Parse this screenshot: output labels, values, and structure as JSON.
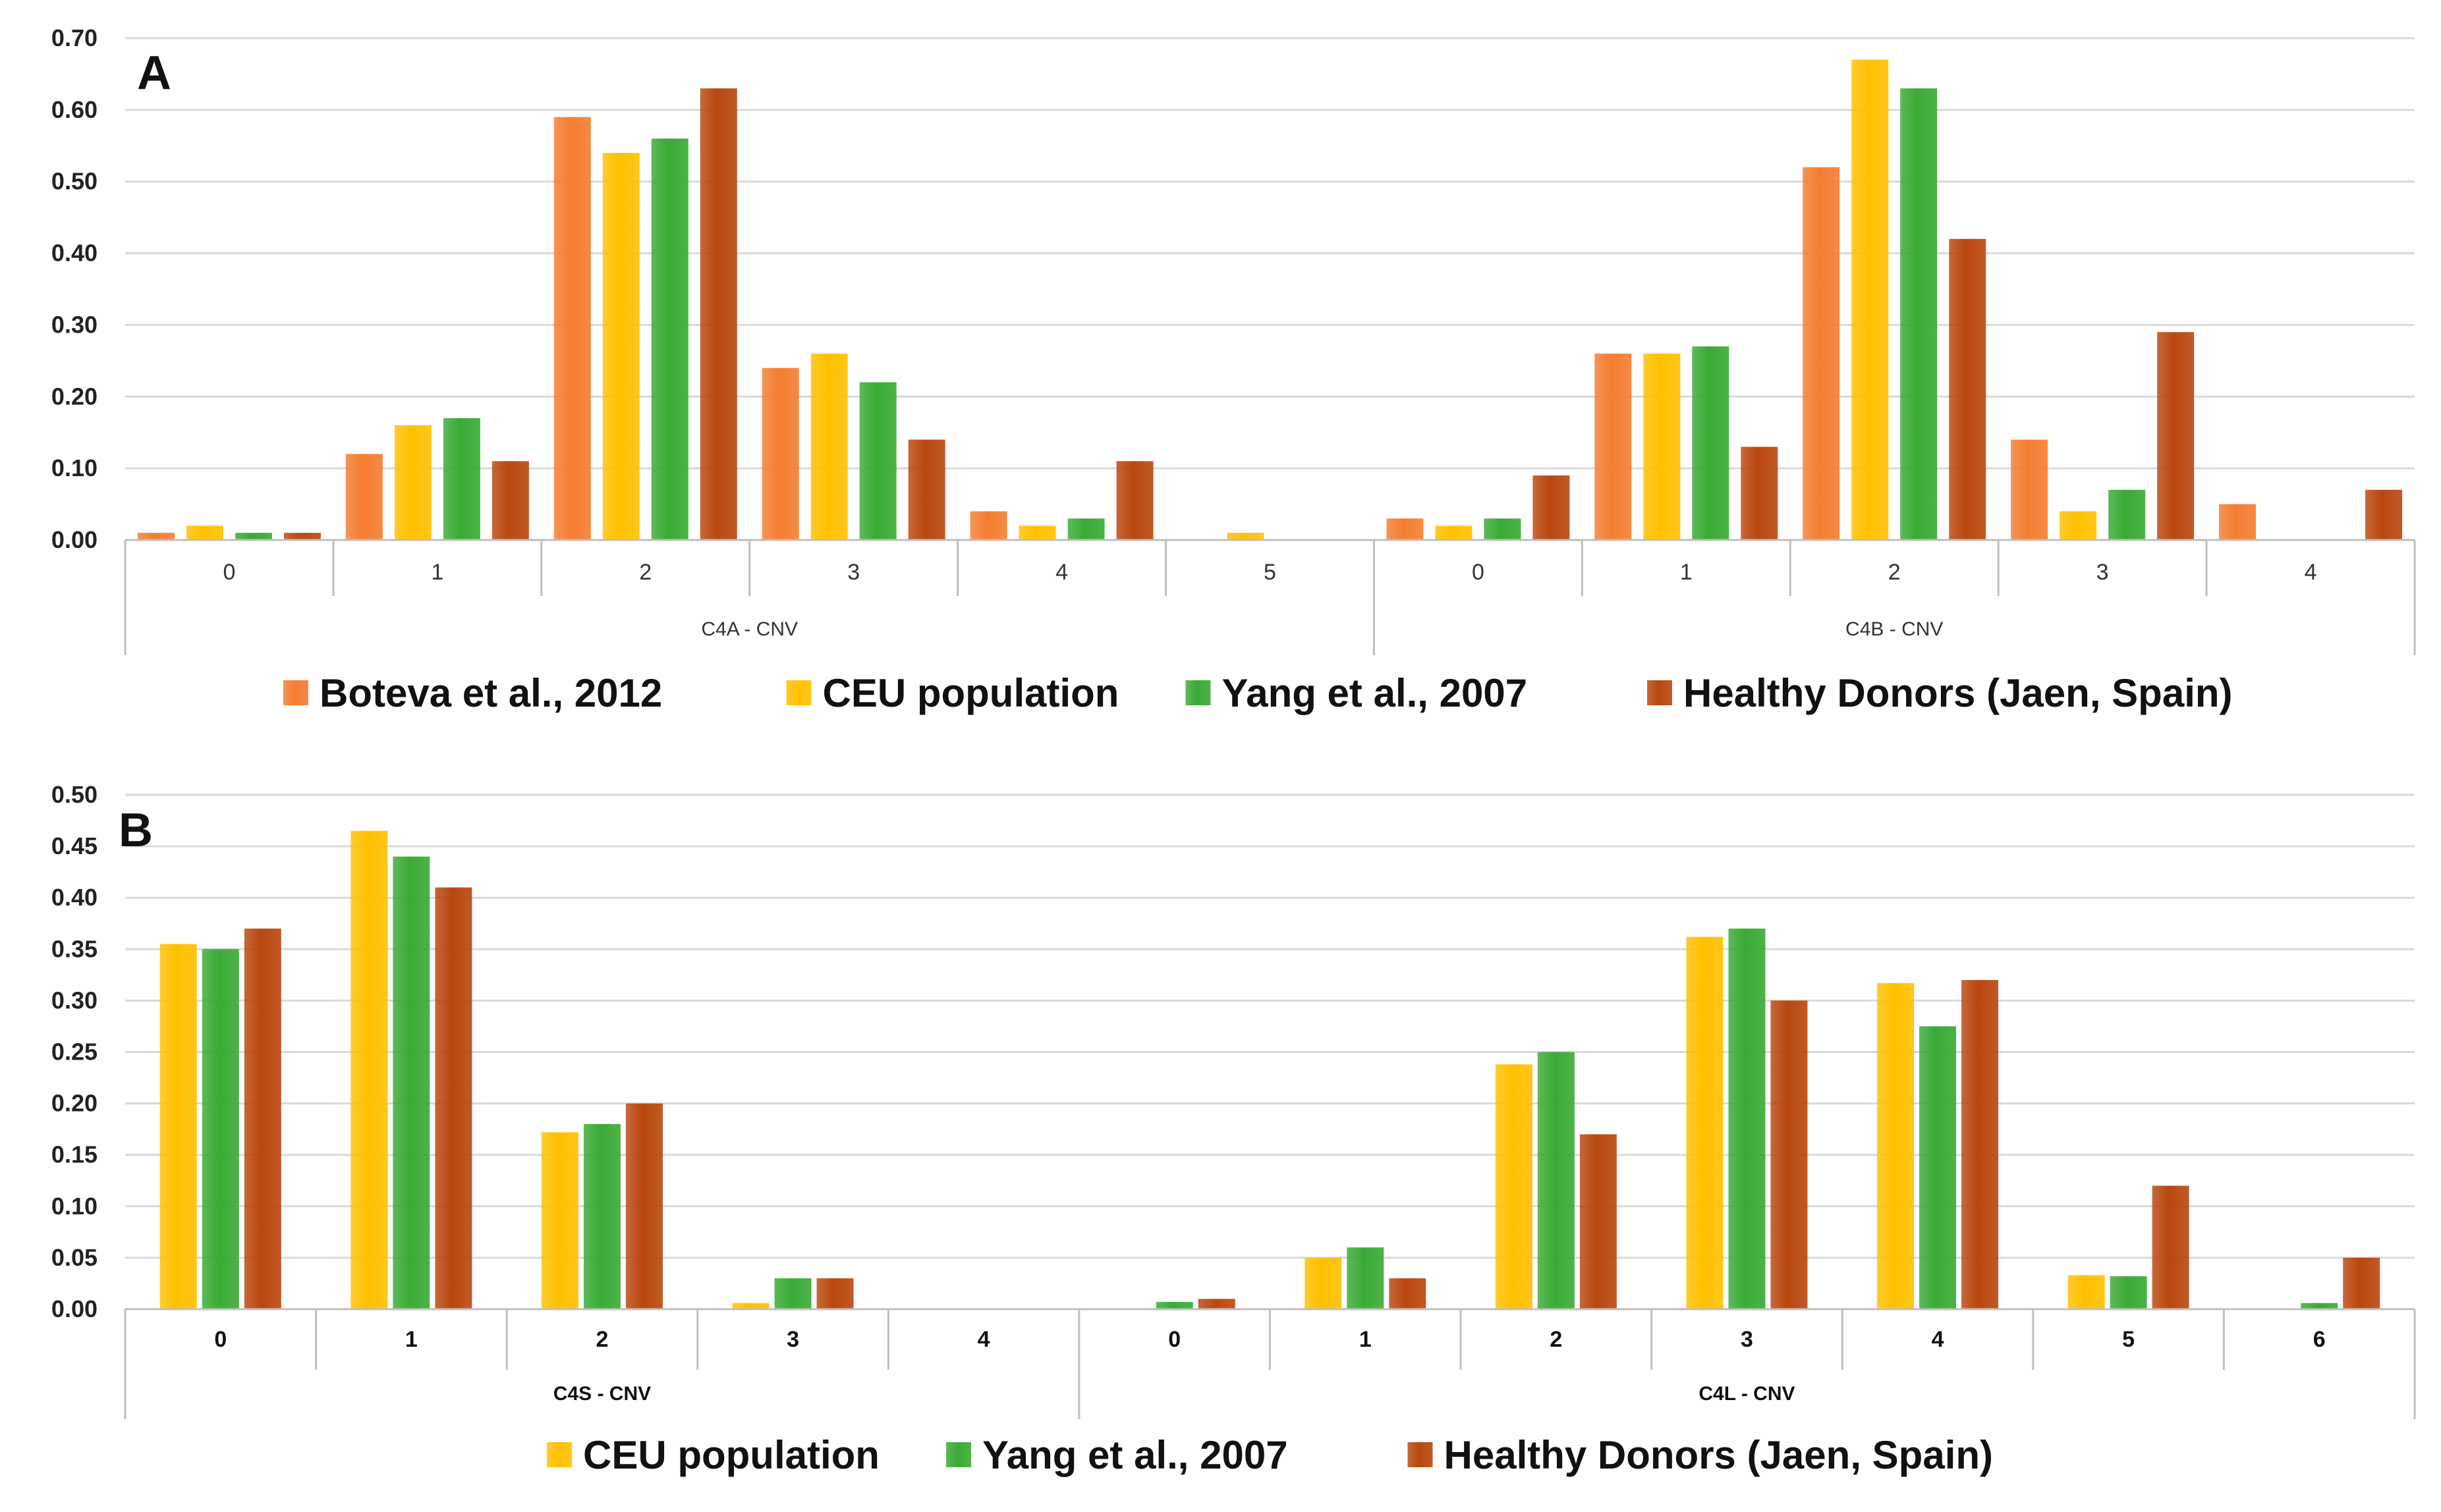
{
  "chart_data": [
    {
      "panel_label": "A",
      "type": "bar",
      "ylim": [
        0,
        0.7
      ],
      "yticks": [
        "0.00",
        "0.10",
        "0.20",
        "0.30",
        "0.40",
        "0.50",
        "0.60",
        "0.70"
      ],
      "ytick_values": [
        0,
        0.1,
        0.2,
        0.3,
        0.4,
        0.5,
        0.6,
        0.7
      ],
      "grid": true,
      "legend_position": "bottom",
      "groups": [
        {
          "label": "C4A -  CNV",
          "categories": [
            "0",
            "1",
            "2",
            "3",
            "4",
            "5"
          ],
          "series": [
            {
              "name": "Boteva et al., 2012",
              "values": [
                0.01,
                0.12,
                0.59,
                0.24,
                0.04,
                0.0
              ]
            },
            {
              "name": "CEU population",
              "values": [
                0.02,
                0.16,
                0.54,
                0.26,
                0.02,
                0.01
              ]
            },
            {
              "name": "Yang et al., 2007",
              "values": [
                0.01,
                0.17,
                0.56,
                0.22,
                0.03,
                0.0
              ]
            },
            {
              "name": "Healthy Donors (Jaen, Spain)",
              "values": [
                0.01,
                0.11,
                0.63,
                0.14,
                0.11,
                0.0
              ]
            }
          ]
        },
        {
          "label": "C4B - CNV",
          "categories": [
            "0",
            "1",
            "2",
            "3",
            "4"
          ],
          "series": [
            {
              "name": "Boteva et al., 2012",
              "values": [
                0.03,
                0.26,
                0.52,
                0.14,
                0.05
              ]
            },
            {
              "name": "CEU population",
              "values": [
                0.02,
                0.26,
                0.67,
                0.04,
                0.0
              ]
            },
            {
              "name": "Yang et al., 2007",
              "values": [
                0.03,
                0.27,
                0.63,
                0.07,
                0.0
              ]
            },
            {
              "name": "Healthy Donors (Jaen, Spain)",
              "values": [
                0.09,
                0.13,
                0.42,
                0.29,
                0.07
              ]
            }
          ]
        }
      ],
      "legend": [
        "Boteva et al., 2012",
        "CEU population",
        "Yang et al., 2007",
        "Healthy Donors (Jaen, Spain)"
      ]
    },
    {
      "panel_label": "B",
      "type": "bar",
      "ylim": [
        0,
        0.5
      ],
      "yticks": [
        "0.00",
        "0.05",
        "0.10",
        "0.15",
        "0.20",
        "0.25",
        "0.30",
        "0.35",
        "0.40",
        "0.45",
        "0.50"
      ],
      "ytick_values": [
        0,
        0.05,
        0.1,
        0.15,
        0.2,
        0.25,
        0.3,
        0.35,
        0.4,
        0.45,
        0.5
      ],
      "grid": true,
      "legend_position": "bottom",
      "groups": [
        {
          "label": "C4S - CNV",
          "categories": [
            "0",
            "1",
            "2",
            "3",
            "4"
          ],
          "series": [
            {
              "name": "CEU population",
              "values": [
                0.355,
                0.465,
                0.172,
                0.006,
                0.0
              ]
            },
            {
              "name": "Yang et al., 2007",
              "values": [
                0.35,
                0.44,
                0.18,
                0.03,
                0.0
              ]
            },
            {
              "name": "Healthy Donors (Jaen, Spain)",
              "values": [
                0.37,
                0.41,
                0.2,
                0.03,
                0.0
              ]
            }
          ]
        },
        {
          "label": "C4L - CNV",
          "categories": [
            "0",
            "1",
            "2",
            "3",
            "4",
            "5",
            "6"
          ],
          "series": [
            {
              "name": "CEU population",
              "values": [
                0.0,
                0.05,
                0.238,
                0.362,
                0.317,
                0.033,
                0.0
              ]
            },
            {
              "name": "Yang et al., 2007",
              "values": [
                0.007,
                0.06,
                0.25,
                0.37,
                0.275,
                0.032,
                0.006
              ]
            },
            {
              "name": "Healthy Donors (Jaen, Spain)",
              "values": [
                0.01,
                0.03,
                0.17,
                0.3,
                0.32,
                0.12,
                0.05
              ]
            }
          ]
        }
      ],
      "legend": [
        "CEU population",
        "Yang et al., 2007",
        "Healthy Donors (Jaen, Spain)"
      ]
    }
  ],
  "colors": {
    "Boteva et al., 2012": "#f47d30",
    "CEU population": "#ffc000",
    "Yang et al., 2007": "#3aaa35",
    "Healthy Donors (Jaen, Spain)": "#b9470f",
    "grid": "#d9d9d9",
    "axis": "#bfbfbf"
  }
}
